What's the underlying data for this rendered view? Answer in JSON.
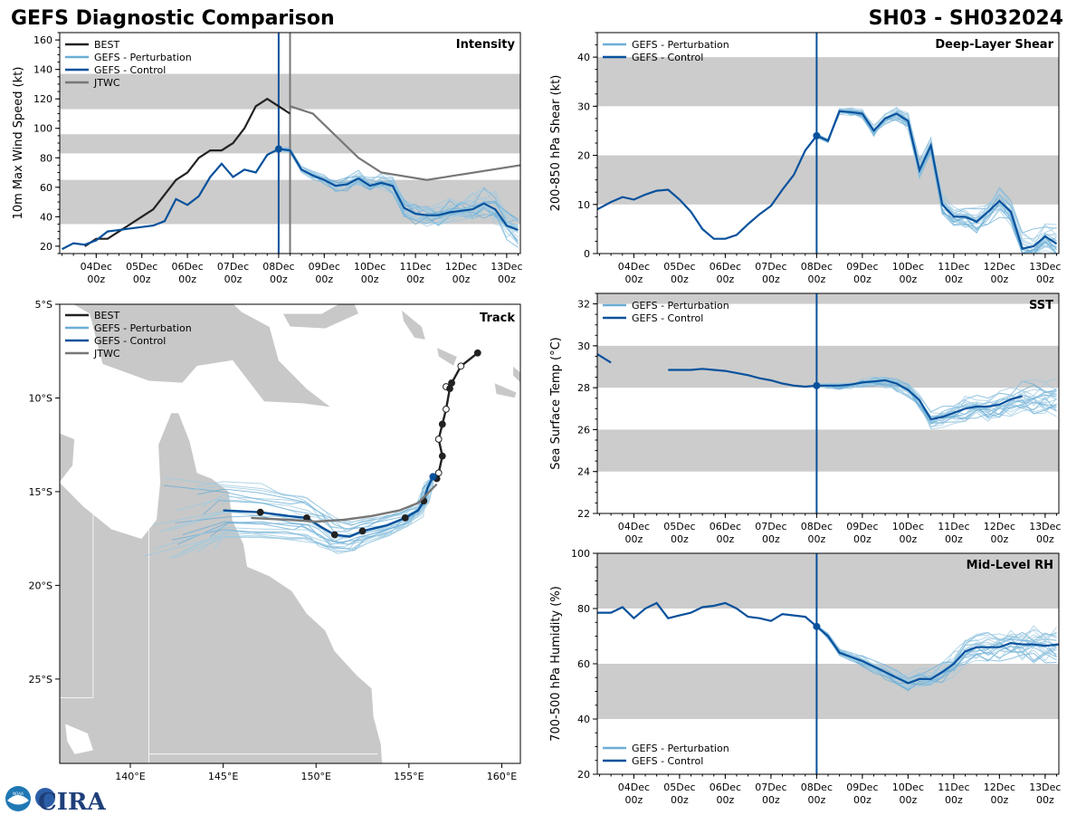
{
  "header": {
    "title_left": "GEFS Diagnostic Comparison",
    "title_right": "SH03 - SH032024"
  },
  "logos": {
    "noaa": "NOAA",
    "cira": "CIRA"
  },
  "colors": {
    "best": "#222222",
    "perturbation": "#6baed6",
    "perturbation_thin": "#9ecae1",
    "control": "#08519c",
    "jtwc": "#777777",
    "band": "#cccccc",
    "land": "#c8c8c8"
  },
  "time_ticks": [
    "04Dec\n00z",
    "05Dec\n00z",
    "06Dec\n00z",
    "07Dec\n00z",
    "08Dec\n00z",
    "09Dec\n00z",
    "10Dec\n00z",
    "11Dec\n00z",
    "12Dec\n00z",
    "13Dec\n00z"
  ],
  "chart_data": [
    {
      "id": "intensity",
      "type": "line",
      "title": "Intensity",
      "ylabel": "10m Max Wind Speed (kt)",
      "xlim": [
        3.2,
        13.3
      ],
      "ylim": [
        15,
        165
      ],
      "yticks": [
        20,
        40,
        60,
        80,
        100,
        120,
        140,
        160
      ],
      "bands": [
        [
          35,
          65
        ],
        [
          83,
          96
        ],
        [
          113,
          137
        ]
      ],
      "vlines": [
        {
          "x": 8.0,
          "color": "control"
        },
        {
          "x": 8.25,
          "color": "jtwc"
        }
      ],
      "legend": [
        "BEST",
        "GEFS - Perturbation",
        "GEFS - Control",
        "JTWC"
      ],
      "series": [
        {
          "name": "BEST",
          "x": [
            3.75,
            4.0,
            4.25,
            4.5,
            4.75,
            5.0,
            5.25,
            5.5,
            5.75,
            6.0,
            6.25,
            6.5,
            6.75,
            7.0,
            7.25,
            7.5,
            7.75,
            8.0,
            8.25
          ],
          "y": [
            20,
            25,
            25,
            30,
            35,
            40,
            45,
            55,
            65,
            70,
            80,
            85,
            85,
            90,
            100,
            115,
            120,
            115,
            110
          ]
        },
        {
          "name": "GEFS - Control",
          "x": [
            3.25,
            3.5,
            3.75,
            4.0,
            4.25,
            4.5,
            4.75,
            5.0,
            5.25,
            5.5,
            5.75,
            6.0,
            6.25,
            6.5,
            6.75,
            7.0,
            7.25,
            7.5,
            7.75,
            8.0,
            8.25,
            8.5,
            8.75,
            9.0,
            9.25,
            9.5,
            9.75,
            10.0,
            10.25,
            10.5,
            10.75,
            11.0,
            11.25,
            11.5,
            11.75,
            12.0,
            12.25,
            12.5,
            12.75,
            13.0,
            13.25
          ],
          "y": [
            18,
            22,
            21,
            24,
            30,
            31,
            32,
            33,
            34,
            37,
            52,
            48,
            54,
            67,
            76,
            67,
            72,
            70,
            82,
            86,
            85,
            72,
            68,
            65,
            61,
            62,
            66,
            61,
            63,
            61,
            46,
            42,
            41,
            41,
            43,
            44,
            45,
            49,
            45,
            34,
            31
          ]
        },
        {
          "name": "JTWC",
          "x": [
            8.25,
            8.75,
            9.75,
            10.25,
            11.25,
            13.3
          ],
          "y": [
            115,
            110,
            80,
            70,
            65,
            75
          ]
        }
      ]
    },
    {
      "id": "shear",
      "type": "line",
      "title": "Deep-Layer Shear",
      "ylabel": "200-850 hPa Shear (kt)",
      "xlim": [
        3.2,
        13.3
      ],
      "ylim": [
        0,
        45
      ],
      "yticks": [
        0,
        10,
        20,
        30,
        40
      ],
      "bands": [
        [
          10,
          20
        ],
        [
          30,
          40
        ]
      ],
      "vlines": [
        {
          "x": 8.0,
          "color": "control"
        }
      ],
      "legend": [
        "GEFS - Perturbation",
        "GEFS - Control"
      ],
      "series": [
        {
          "name": "GEFS - Control",
          "x": [
            3.2,
            3.5,
            3.75,
            4.0,
            4.25,
            4.5,
            4.75,
            5.0,
            5.25,
            5.5,
            5.75,
            6.0,
            6.25,
            6.5,
            6.75,
            7.0,
            7.25,
            7.5,
            7.75,
            8.0,
            8.25,
            8.5,
            8.75,
            9.0,
            9.25,
            9.5,
            9.75,
            10.0,
            10.25,
            10.5,
            10.75,
            11.0,
            11.25,
            11.5,
            11.75,
            12.0,
            12.25,
            12.5,
            12.75,
            13.0,
            13.25
          ],
          "y": [
            9,
            10.5,
            11.5,
            11,
            12,
            12.8,
            13,
            11,
            8.5,
            5,
            3,
            3,
            3.8,
            6,
            8,
            9.7,
            13,
            16,
            21,
            24,
            23,
            29,
            28.8,
            28.5,
            25,
            27.5,
            28.5,
            27,
            17,
            22,
            10,
            7.5,
            7.5,
            6.5,
            8.5,
            10.7,
            8.5,
            1,
            1.5,
            3.5,
            2
          ]
        }
      ]
    },
    {
      "id": "sst",
      "type": "line",
      "title": "SST",
      "ylabel": "Sea Surface Temp (°C)",
      "xlim": [
        3.2,
        13.3
      ],
      "ylim": [
        22,
        32.5
      ],
      "yticks": [
        22,
        24,
        26,
        28,
        30,
        32
      ],
      "bands": [
        [
          24,
          26
        ],
        [
          28,
          30
        ],
        [
          32,
          32.5
        ]
      ],
      "vlines": [
        {
          "x": 8.0,
          "color": "control"
        }
      ],
      "legend": [
        "GEFS - Perturbation",
        "GEFS - Control"
      ],
      "series": [
        {
          "name": "GEFS - Control",
          "x": [
            3.2,
            3.5
          ],
          "y": [
            29.6,
            29.2
          ]
        },
        {
          "name": "GEFS - Control",
          "x": [
            4.75,
            5.0,
            5.25,
            5.5,
            5.75,
            6.0,
            6.25,
            6.5,
            6.75,
            7.0,
            7.25,
            7.5,
            7.75,
            8.0,
            8.25,
            8.5,
            8.75,
            9.0,
            9.25,
            9.5,
            9.75,
            10.0,
            10.25,
            10.5,
            10.75,
            11.0,
            11.25,
            11.5,
            11.75,
            12.0,
            12.25,
            12.5
          ],
          "y": [
            28.85,
            28.85,
            28.85,
            28.9,
            28.85,
            28.8,
            28.7,
            28.6,
            28.45,
            28.35,
            28.2,
            28.1,
            28.05,
            28.1,
            28.1,
            28.1,
            28.15,
            28.25,
            28.3,
            28.35,
            28.2,
            27.9,
            27.4,
            26.5,
            26.6,
            26.8,
            27.0,
            27.1,
            27.1,
            27.2,
            27.45,
            27.6
          ]
        }
      ]
    },
    {
      "id": "rh",
      "type": "line",
      "title": "Mid-Level RH",
      "ylabel": "700-500 hPa Humidity (%)",
      "xlim": [
        3.2,
        13.3
      ],
      "ylim": [
        20,
        100
      ],
      "yticks": [
        20,
        40,
        60,
        80,
        100
      ],
      "bands": [
        [
          40,
          60
        ],
        [
          80,
          100
        ]
      ],
      "vlines": [
        {
          "x": 8.0,
          "color": "control"
        }
      ],
      "legend": [
        "GEFS - Perturbation",
        "GEFS - Control"
      ],
      "series": [
        {
          "name": "GEFS - Control",
          "x": [
            3.2,
            3.5,
            3.75,
            4.0,
            4.25,
            4.5,
            4.75,
            5.0,
            5.25,
            5.5,
            5.75,
            6.0,
            6.25,
            6.5,
            6.75,
            7.0,
            7.25,
            7.5,
            7.75,
            8.0,
            8.25,
            8.5,
            8.75,
            9.0,
            9.25,
            9.5,
            9.75,
            10.0,
            10.25,
            10.5,
            10.75,
            11.0,
            11.25,
            11.5,
            11.75,
            12.0,
            12.25,
            12.5,
            12.75,
            13.0,
            13.3
          ],
          "y": [
            78.5,
            78.5,
            80.5,
            76.5,
            80,
            82,
            76.5,
            77.5,
            78.5,
            80.5,
            81,
            82,
            80,
            77,
            76.5,
            75.5,
            78,
            77.5,
            77,
            73.5,
            70,
            64,
            62.5,
            61,
            59,
            57,
            55,
            53,
            54.5,
            54.5,
            57,
            60,
            64.5,
            66,
            66,
            66,
            67.5,
            67,
            67,
            66.5,
            67
          ]
        }
      ]
    },
    {
      "id": "track",
      "type": "scatter",
      "title": "Track",
      "xlim": [
        136.2,
        161
      ],
      "ylim": [
        -29.5,
        -5
      ],
      "xticks": [
        "140°E",
        "145°E",
        "150°E",
        "155°E",
        "160°E"
      ],
      "yticks": [
        "5°S",
        "10°S",
        "15°S",
        "20°S",
        "25°S"
      ],
      "legend": [
        "BEST",
        "GEFS - Perturbation",
        "GEFS - Control",
        "JTWC"
      ],
      "series": [
        {
          "name": "BEST",
          "lon": [
            158.7,
            157.8,
            157.3,
            157.0,
            157.2,
            157.0,
            156.8,
            156.6,
            156.8,
            156.6,
            156.5
          ],
          "lat": [
            -7.6,
            -8.3,
            -9.2,
            -9.4,
            -9.5,
            -10.6,
            -11.4,
            -12.2,
            -13.1,
            -14.0,
            -14.3
          ]
        },
        {
          "name": "GEFS - Control",
          "lon": [
            156.3,
            156.0,
            155.8,
            155.5,
            154.8,
            153.8,
            152.5,
            151.8,
            151.0,
            150.3,
            149.5,
            148.5,
            147.0,
            145.0
          ],
          "lat": [
            -14.2,
            -14.8,
            -15.5,
            -16.0,
            -16.4,
            -16.8,
            -17.1,
            -17.4,
            -17.3,
            -16.9,
            -16.4,
            -16.3,
            -16.1,
            -16.0
          ]
        },
        {
          "name": "JTWC",
          "lon": [
            156.5,
            155.5,
            154.5,
            153.0,
            151.5,
            150.0,
            148.5,
            146.5
          ],
          "lat": [
            -14.6,
            -15.6,
            -16.0,
            -16.3,
            -16.5,
            -16.6,
            -16.5,
            -16.4
          ]
        }
      ]
    }
  ]
}
